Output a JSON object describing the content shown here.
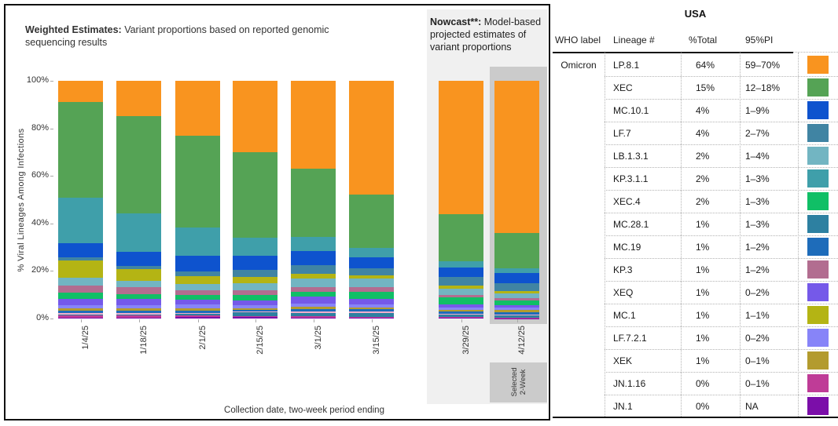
{
  "titles": {
    "weighted_bold": "Weighted Estimates:",
    "weighted_rest": " Variant proportions based on reported genomic sequencing results",
    "nowcast_bold": "Nowcast**:",
    "nowcast_rest": " Model-based projected estimates of variant proportions"
  },
  "nowcast_panel": {
    "selected_line1": "Selected",
    "selected_line2": "2-Week"
  },
  "chart_data": {
    "type": "bar",
    "stacked": true,
    "title": "Weighted Estimates: Variant proportions based on reported genomic sequencing results",
    "ylabel": "% Viral Lineages Among Infections",
    "xlabel": "Collection date, two-week period ending",
    "ylim": [
      0,
      100
    ],
    "yticks": [
      "100%",
      "80%",
      "60%",
      "40%",
      "20%",
      "0%"
    ],
    "label_min_value": 14,
    "stack_order": [
      "LP.8.1",
      "XEC",
      "KP.3.1.1",
      "MC.10.1",
      "LF.7",
      "MC.1",
      "LB.1.3.1",
      "KP.3",
      "XEC.4",
      "XEQ",
      "LF.7.2.1",
      "XEK",
      "MC.19",
      "unlabeled-pink",
      "MC.28.1",
      "JN.1.16",
      "JN.1"
    ],
    "palette": {
      "LP.8.1": "#F9941F",
      "XEC": "#55A355",
      "KP.3.1.1": "#3F9FAA",
      "MC.10.1": "#0E53CE",
      "LF.7": "#4084A3",
      "MC.1": "#B4B414",
      "LB.1.3.1": "#72B5C2",
      "KP.3": "#B26D90",
      "XEC.4": "#10BF66",
      "XEQ": "#7559E9",
      "LF.7.2.1": "#8784F8",
      "XEK": "#B39B2E",
      "MC.19": "#1E6CBA",
      "unlabeled-pink": "#F2AECD",
      "MC.28.1": "#2D80A1",
      "JN.1.16": "#BF3C97",
      "JN.1": "#7B0EA9"
    },
    "groups": [
      {
        "name": "weighted",
        "categories": [
          "1/4/25",
          "1/18/25",
          "2/1/25",
          "2/15/25",
          "3/1/25",
          "3/15/25"
        ],
        "bars": [
          [
            9,
            40,
            19,
            6,
            1.5,
            7,
            3.5,
            3,
            2.5,
            2.5,
            1.5,
            1,
            0.8,
            0.8,
            0.4,
            0.8,
            0.4
          ],
          [
            15,
            41,
            16,
            6,
            1.5,
            5,
            2.5,
            3,
            2,
            2.5,
            1.5,
            1,
            0.8,
            0.8,
            0.4,
            0.8,
            0.4
          ],
          [
            23,
            38.5,
            12,
            6.5,
            2,
            3.5,
            2.5,
            2,
            2,
            2,
            1.5,
            1,
            1,
            0.6,
            0.6,
            0.7,
            0.5
          ],
          [
            30,
            36,
            7.5,
            6,
            3,
            2.5,
            3,
            2,
            2.5,
            2,
            1.2,
            0.6,
            0.7,
            0.4,
            1.5,
            0.6,
            0.5
          ],
          [
            37,
            29,
            6,
            6,
            3.5,
            2,
            3.5,
            2,
            2,
            3,
            1.5,
            1,
            1,
            0.5,
            1.5,
            0.5,
            0.4
          ],
          [
            48,
            22.5,
            4,
            4.5,
            3,
            1.5,
            3.5,
            2,
            3,
            2.5,
            1.2,
            0.8,
            1,
            0.5,
            1.5,
            0.5,
            0.3
          ]
        ]
      },
      {
        "name": "nowcast",
        "categories": [
          "3/29/25",
          "4/12/25"
        ],
        "selected_category": "4/12/25",
        "bars": [
          [
            56,
            20,
            2.5,
            4,
            3.5,
            1.5,
            2.5,
            1.2,
            2.8,
            1.5,
            1,
            0.7,
            0.8,
            0.5,
            0.8,
            0.4,
            0.3
          ],
          [
            64,
            15,
            2,
            4,
            3.5,
            1,
            2,
            1,
            2,
            1,
            1,
            0.8,
            1,
            0.3,
            1,
            0.3,
            0.1
          ]
        ]
      }
    ]
  },
  "table": {
    "title": "USA",
    "columns": [
      "WHO label",
      "Lineage #",
      "%Total",
      "95%PI"
    ],
    "who_label": "Omicron",
    "rows": [
      {
        "lineage": "LP.8.1",
        "total": "64%",
        "pi": "59–70%"
      },
      {
        "lineage": "XEC",
        "total": "15%",
        "pi": "12–18%"
      },
      {
        "lineage": "MC.10.1",
        "total": "4%",
        "pi": "1–9%"
      },
      {
        "lineage": "LF.7",
        "total": "4%",
        "pi": "2–7%"
      },
      {
        "lineage": "LB.1.3.1",
        "total": "2%",
        "pi": "1–4%"
      },
      {
        "lineage": "KP.3.1.1",
        "total": "2%",
        "pi": "1–3%"
      },
      {
        "lineage": "XEC.4",
        "total": "2%",
        "pi": "1–3%"
      },
      {
        "lineage": "MC.28.1",
        "total": "1%",
        "pi": "1–3%"
      },
      {
        "lineage": "MC.19",
        "total": "1%",
        "pi": "1–2%"
      },
      {
        "lineage": "KP.3",
        "total": "1%",
        "pi": "1–2%"
      },
      {
        "lineage": "XEQ",
        "total": "1%",
        "pi": "0–2%"
      },
      {
        "lineage": "MC.1",
        "total": "1%",
        "pi": "1–1%"
      },
      {
        "lineage": "LF.7.2.1",
        "total": "1%",
        "pi": "0–2%"
      },
      {
        "lineage": "XEK",
        "total": "1%",
        "pi": "0–1%"
      },
      {
        "lineage": "JN.1.16",
        "total": "0%",
        "pi": "0–1%"
      },
      {
        "lineage": "JN.1",
        "total": "0%",
        "pi": "NA"
      }
    ]
  }
}
